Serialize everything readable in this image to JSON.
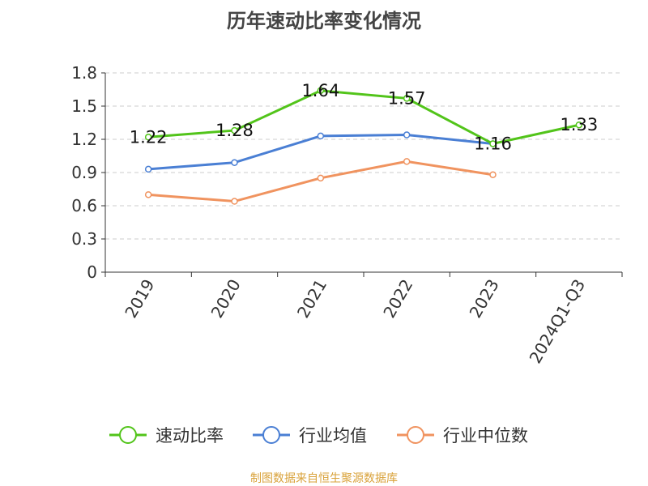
{
  "title": "历年速动比率变化情况",
  "footer": "制图数据来自恒生聚源数据库",
  "chart_data": {
    "type": "line",
    "title": "历年速动比率变化情况",
    "categories": [
      "2019",
      "2020",
      "2021",
      "2022",
      "2023",
      "2024Q1-Q3"
    ],
    "ylim": [
      0,
      1.8
    ],
    "yticks": [
      "0",
      "0.3",
      "0.6",
      "0.9",
      "1.2",
      "1.5",
      "1.8"
    ],
    "grid": true,
    "legend": "bottom",
    "series": [
      {
        "name": "速动比率",
        "color": "#52c41a",
        "values": [
          1.22,
          1.28,
          1.64,
          1.57,
          1.16,
          1.33
        ],
        "labels": [
          "1.22",
          "1.28",
          "1.64",
          "1.57",
          "1.16",
          "1.33"
        ]
      },
      {
        "name": "行业均值",
        "color": "#4a7fd4",
        "values": [
          0.93,
          0.99,
          1.23,
          1.24,
          1.16,
          null
        ]
      },
      {
        "name": "行业中位数",
        "color": "#f0935f",
        "values": [
          0.7,
          0.64,
          0.85,
          1.0,
          0.88,
          null
        ]
      }
    ]
  }
}
